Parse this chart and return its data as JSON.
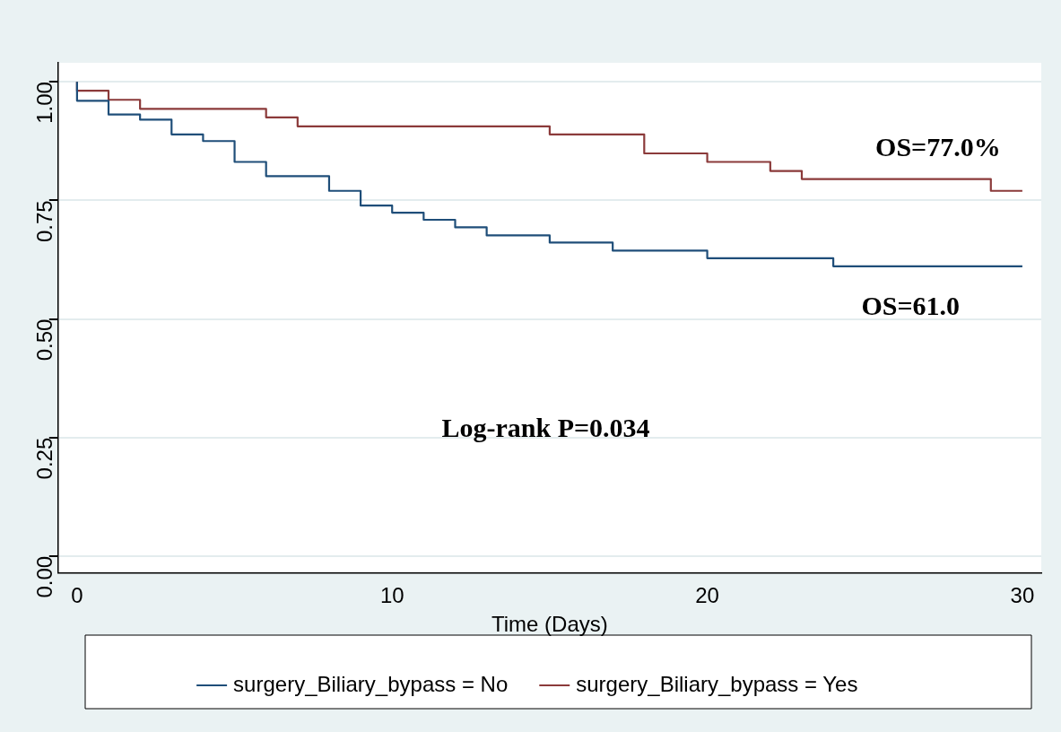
{
  "chart_data": {
    "type": "step",
    "xlabel": "Time (Days)",
    "xlim": [
      -0.6,
      30.6
    ],
    "xticks": [
      0,
      10,
      20,
      30
    ],
    "ylim": [
      -0.035,
      1.04
    ],
    "yticks": [
      {
        "value": 0,
        "label": "0.00"
      },
      {
        "value": 0.25,
        "label": "0.25"
      },
      {
        "value": 0.5,
        "label": "0.50"
      },
      {
        "value": 0.75,
        "label": "0.75"
      },
      {
        "value": 1,
        "label": "1.00"
      }
    ],
    "grid": "y",
    "legend": "bottom",
    "line_style": "solid",
    "marker": "none",
    "series": [
      {
        "name": "surgery_Biliary_bypass = No",
        "color": "#1f4e79",
        "x": [
          0,
          1,
          2,
          3,
          4,
          5,
          6,
          8,
          9,
          10,
          11,
          12,
          13,
          15,
          17,
          20,
          24,
          27,
          30
        ],
        "values": [
          1,
          0.96,
          0.931,
          0.92,
          0.889,
          0.875,
          0.831,
          0.801,
          0.77,
          0.739,
          0.724,
          0.709,
          0.693,
          0.676,
          0.661,
          0.644,
          0.628,
          0.611,
          0.611
        ]
      },
      {
        "name": "surgery_Biliary_bypass = Yes",
        "color": "#8b3a3a",
        "x": [
          0,
          1,
          2,
          6,
          7,
          15,
          18,
          20,
          22,
          23,
          29,
          30
        ],
        "values": [
          1,
          0.981,
          0.962,
          0.943,
          0.925,
          0.906,
          0.889,
          0.849,
          0.831,
          0.812,
          0.795,
          0.77
        ]
      }
    ],
    "annotations": [
      "OS=77.0%",
      "OS=61.0",
      "Log-rank P=0.034"
    ]
  }
}
